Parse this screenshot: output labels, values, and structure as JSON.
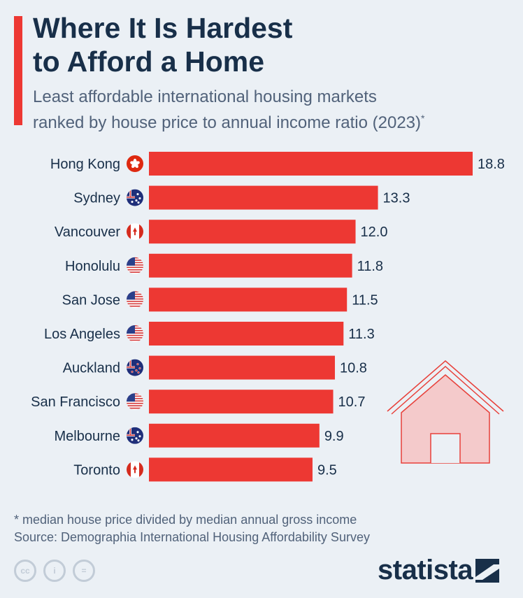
{
  "header": {
    "title_line1": "Where It Is Hardest",
    "title_line2": "to Afford a Home",
    "subtitle_line1": "Least affordable international housing markets",
    "subtitle_line2": "ranked by house price to annual income ratio (2023)",
    "subtitle_mark": "*"
  },
  "colors": {
    "bar": "#ed3833",
    "background": "#ebf0f5",
    "title": "#182f49",
    "text": "#51627a",
    "house": "#f4cacb"
  },
  "chart_data": {
    "type": "bar",
    "orientation": "horizontal",
    "categories": [
      "Hong Kong",
      "Sydney",
      "Vancouver",
      "Honolulu",
      "San Jose",
      "Los Angeles",
      "Auckland",
      "San Francisco",
      "Melbourne",
      "Toronto"
    ],
    "flags": [
      "hong-kong-flag",
      "australia-flag",
      "canada-flag",
      "usa-flag",
      "usa-flag",
      "usa-flag",
      "new-zealand-flag",
      "usa-flag",
      "australia-flag",
      "canada-flag"
    ],
    "values": [
      18.8,
      13.3,
      12.0,
      11.8,
      11.5,
      11.3,
      10.8,
      10.7,
      9.9,
      9.5
    ],
    "value_labels": [
      "18.8",
      "13.3",
      "12.0",
      "11.8",
      "11.5",
      "11.3",
      "10.8",
      "10.7",
      "9.9",
      "9.5"
    ],
    "xlim": [
      0,
      18.8
    ],
    "grid": false,
    "legend": "none"
  },
  "footer": {
    "footnote": "* median house price divided by median annual gross income",
    "source": "Source: Demographia International Housing Affordability Survey",
    "logo": "statista",
    "cc_labels": [
      "cc",
      "i",
      "="
    ]
  }
}
